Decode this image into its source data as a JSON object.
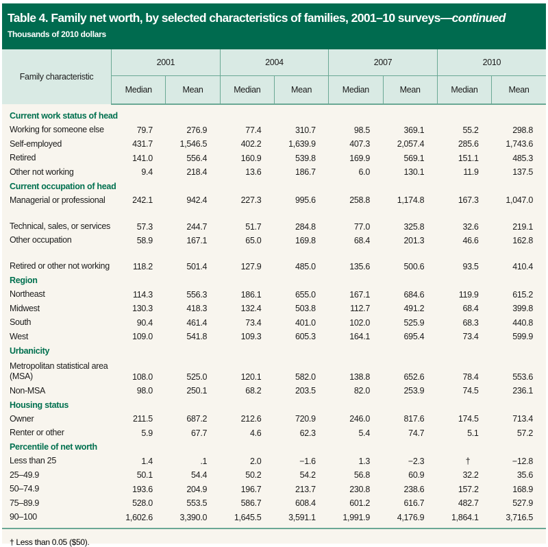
{
  "title": {
    "main": "Table 4. Family net worth, by selected characteristics of families, 2001–10 surveys—",
    "continued": "continued",
    "subtitle": "Thousands of 2010 dollars"
  },
  "header": {
    "row_label": "Family characteristic",
    "years": [
      "2001",
      "2004",
      "2007",
      "2010"
    ],
    "measures": [
      "Median",
      "Mean"
    ]
  },
  "colors": {
    "title_band": "#006b4f",
    "header_band": "#d9eae4",
    "section_text": "#00704f",
    "background": "#f8f5ee"
  },
  "sections": [
    {
      "heading": "Current work status of head",
      "rows": [
        {
          "label": "Working for someone else",
          "values": [
            "79.7",
            "276.9",
            "77.4",
            "310.7",
            "98.5",
            "369.1",
            "55.2",
            "298.8"
          ]
        },
        {
          "label": "Self-employed",
          "values": [
            "431.7",
            "1,546.5",
            "402.2",
            "1,639.9",
            "407.3",
            "2,057.4",
            "285.6",
            "1,743.6"
          ]
        },
        {
          "label": "Retired",
          "values": [
            "141.0",
            "556.4",
            "160.9",
            "539.8",
            "169.9",
            "569.1",
            "151.1",
            "485.3"
          ]
        },
        {
          "label": "Other not working",
          "values": [
            "9.4",
            "218.4",
            "13.6",
            "186.7",
            "6.0",
            "130.1",
            "11.9",
            "137.5"
          ]
        }
      ]
    },
    {
      "heading": "Current occupation of head",
      "rows": [
        {
          "label": "Managerial or professional",
          "values": [
            "242.1",
            "942.4",
            "227.3",
            "995.6",
            "258.8",
            "1,174.8",
            "167.3",
            "1,047.0"
          ]
        },
        {
          "label": "Technical, sales, or services",
          "values": [
            "57.3",
            "244.7",
            "51.7",
            "284.8",
            "77.0",
            "325.8",
            "32.6",
            "219.1"
          ],
          "two_line": true
        },
        {
          "label": "Other occupation",
          "values": [
            "58.9",
            "167.1",
            "65.0",
            "169.8",
            "68.4",
            "201.3",
            "46.6",
            "162.8"
          ]
        },
        {
          "label": "Retired or other not working",
          "values": [
            "118.2",
            "501.4",
            "127.9",
            "485.0",
            "135.6",
            "500.6",
            "93.5",
            "410.4"
          ],
          "two_line": true
        }
      ]
    },
    {
      "heading": "Region",
      "rows": [
        {
          "label": "Northeast",
          "values": [
            "114.3",
            "556.3",
            "186.1",
            "655.0",
            "167.1",
            "684.6",
            "119.9",
            "615.2"
          ]
        },
        {
          "label": "Midwest",
          "values": [
            "130.3",
            "418.3",
            "132.4",
            "503.8",
            "112.7",
            "491.2",
            "68.4",
            "399.8"
          ]
        },
        {
          "label": "South",
          "values": [
            "90.4",
            "461.4",
            "73.4",
            "401.0",
            "102.0",
            "525.9",
            "68.3",
            "440.8"
          ]
        },
        {
          "label": "West",
          "values": [
            "109.0",
            "541.8",
            "109.3",
            "605.3",
            "164.1",
            "695.4",
            "73.4",
            "599.9"
          ]
        }
      ]
    },
    {
      "heading": "Urbanicity",
      "rows": [
        {
          "label": "Metropolitan statistical area (MSA)",
          "values": [
            "108.0",
            "525.0",
            "120.1",
            "582.0",
            "138.8",
            "652.6",
            "78.4",
            "553.6"
          ],
          "two_line": true
        },
        {
          "label": "Non-MSA",
          "values": [
            "98.0",
            "250.1",
            "68.2",
            "203.5",
            "82.0",
            "253.9",
            "74.5",
            "236.1"
          ]
        }
      ]
    },
    {
      "heading": "Housing status",
      "rows": [
        {
          "label": "Owner",
          "values": [
            "211.5",
            "687.2",
            "212.6",
            "720.9",
            "246.0",
            "817.6",
            "174.5",
            "713.4"
          ]
        },
        {
          "label": "Renter or other",
          "values": [
            "5.9",
            "67.7",
            "4.6",
            "62.3",
            "5.4",
            "74.7",
            "5.1",
            "57.2"
          ]
        }
      ]
    },
    {
      "heading": "Percentile of net worth",
      "rows": [
        {
          "label": "Less than 25",
          "values": [
            "1.4",
            ".1",
            "2.0",
            "−1.6",
            "1.3",
            "−2.3",
            "†",
            "−12.8"
          ]
        },
        {
          "label": "25–49.9",
          "values": [
            "50.1",
            "54.4",
            "50.2",
            "54.2",
            "56.8",
            "60.9",
            "32.2",
            "35.6"
          ]
        },
        {
          "label": "50–74.9",
          "values": [
            "193.6",
            "204.9",
            "196.7",
            "213.7",
            "230.8",
            "238.6",
            "157.2",
            "168.9"
          ]
        },
        {
          "label": "75–89.9",
          "values": [
            "528.0",
            "553.5",
            "586.7",
            "608.4",
            "601.2",
            "616.7",
            "482.7",
            "527.9"
          ]
        },
        {
          "label": "90–100",
          "values": [
            "1,602.6",
            "3,390.0",
            "1,645.5",
            "3,591.1",
            "1,991.9",
            "4,176.9",
            "1,864.1",
            "3,716.5"
          ]
        }
      ]
    }
  ],
  "footnote": "† Less than 0.05 ($50)."
}
